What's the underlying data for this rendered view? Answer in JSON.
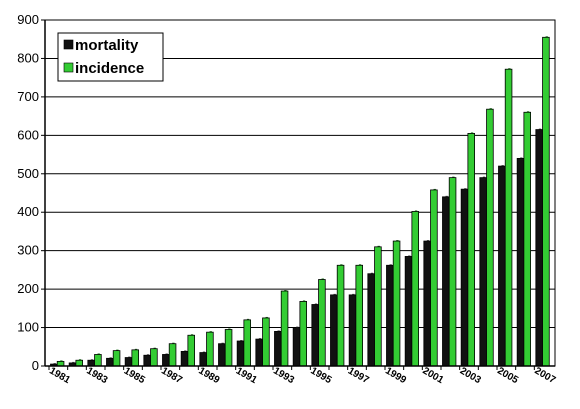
{
  "chart_data": {
    "type": "bar",
    "title": "",
    "xlabel": "",
    "ylabel": "",
    "ylim": [
      0,
      900
    ],
    "yticks": [
      0,
      100,
      200,
      300,
      400,
      500,
      600,
      700,
      800,
      900
    ],
    "grid": true,
    "legend_position": "top-left",
    "categories": [
      "1981",
      "1982",
      "1983",
      "1984",
      "1985",
      "1986",
      "1987",
      "1988",
      "1989",
      "1990",
      "1991",
      "1992",
      "1993",
      "1994",
      "1995",
      "1996",
      "1997",
      "1998",
      "1999",
      "2000",
      "2001",
      "2002",
      "2003",
      "2004",
      "2005",
      "2006",
      "2007"
    ],
    "tick_labels": [
      "1981",
      "1983",
      "1985",
      "1987",
      "1989",
      "1991",
      "1993",
      "1995",
      "1997",
      "1999",
      "2001",
      "2003",
      "2005",
      "2007"
    ],
    "series": [
      {
        "name": "mortality",
        "color": "#111111",
        "values": [
          5,
          8,
          15,
          20,
          22,
          28,
          30,
          38,
          35,
          58,
          65,
          70,
          90,
          100,
          160,
          185,
          185,
          240,
          262,
          285,
          325,
          440,
          460,
          490,
          520,
          540,
          615
        ]
      },
      {
        "name": "incidence",
        "color": "#33cc33",
        "values": [
          12,
          15,
          30,
          40,
          42,
          45,
          58,
          80,
          88,
          95,
          120,
          125,
          195,
          168,
          225,
          262,
          262,
          310,
          325,
          402,
          458,
          490,
          605,
          668,
          772,
          660,
          855
        ]
      }
    ]
  }
}
